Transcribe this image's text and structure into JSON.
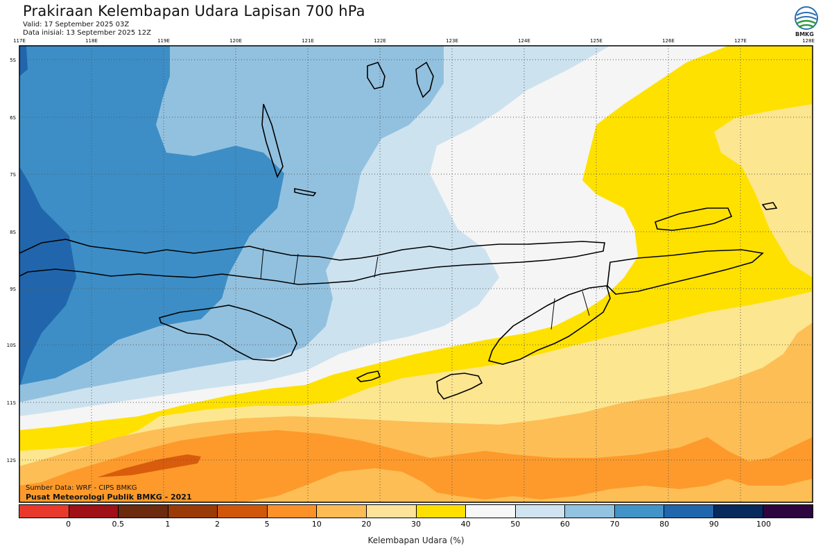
{
  "header": {
    "title": "Prakiraan Kelembapan Udara Lapisan 700 hPa",
    "valid": "Valid: 17 September 2025 03Z",
    "initial": "Data inisial: 13 September 2025 12Z",
    "logo_text": "BMKG"
  },
  "map": {
    "lon_labels": [
      "117E",
      "118E",
      "119E",
      "120E",
      "121E",
      "122E",
      "123E",
      "124E",
      "125E",
      "126E",
      "127E",
      "128E"
    ],
    "lat_labels": [
      "5S",
      "6S",
      "7S",
      "8S",
      "9S",
      "10S",
      "11S",
      "12S"
    ],
    "fill_colors": {
      "band_80_90": "#2166ac",
      "band_70_80": "#3d8ec6",
      "band_60_70": "#92c1df",
      "band_50_60": "#cde2ef",
      "band_40_50": "#f5f5f5",
      "band_30_40": "#ffe100",
      "band_20_30": "#fde690",
      "band_10_20": "#fdbe55",
      "band_5_10": "#fd9a2b",
      "band_2_5": "#d95c0c"
    }
  },
  "footer": {
    "source": "Sumber Data: WRF - CIPS BMKG",
    "publisher": "Pusat Meteorologi Publik BMKG - 2021"
  },
  "colorbar": {
    "title": "Kelembapan Udara (%)",
    "colors": [
      "#e8392c",
      "#a01017",
      "#6b2b0c",
      "#9a3a07",
      "#d0570a",
      "#fb9129",
      "#fdbb55",
      "#fde29a",
      "#ffdf00",
      "#f7f7f7",
      "#cfe3f0",
      "#92c3e0",
      "#4294c8",
      "#2066ad",
      "#062a5d",
      "#2e063f"
    ],
    "labels": [
      "0",
      "0.5",
      "1",
      "2",
      "5",
      "10",
      "20",
      "30",
      "40",
      "50",
      "60",
      "70",
      "80",
      "90",
      "100"
    ]
  }
}
